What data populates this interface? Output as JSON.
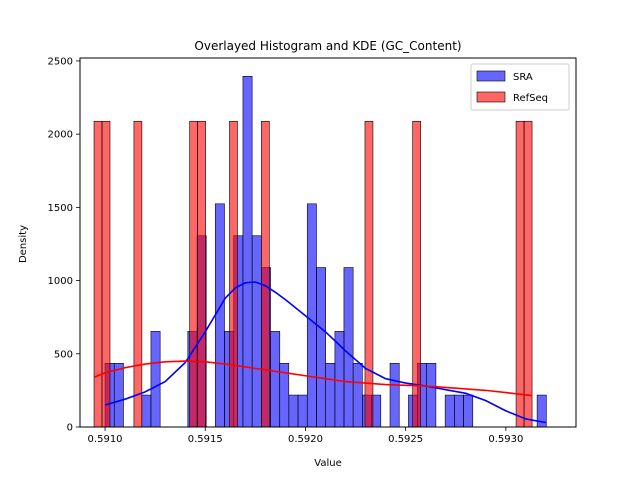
{
  "chart_data": {
    "type": "bar",
    "title": "Overlayed Histogram and KDE (GC_Content)",
    "xlabel": "Value",
    "ylabel": "Density",
    "xlim": [
      0.590875,
      0.59335
    ],
    "ylim": [
      0,
      2520
    ],
    "xticks": [
      0.591,
      0.5915,
      0.592,
      0.5925,
      0.593
    ],
    "xtick_labels": [
      "0.5910",
      "0.5915",
      "0.5920",
      "0.5925",
      "0.5930"
    ],
    "yticks": [
      0,
      500,
      1000,
      1500,
      2000,
      2500
    ],
    "ytick_labels": [
      "0",
      "500",
      "1000",
      "1500",
      "2000",
      "2500"
    ],
    "grid": false,
    "legend_position": "top-right",
    "series": [
      {
        "name": "SRA",
        "kind": "histogram",
        "color": "#0000ff",
        "bin_width": 4.59e-05,
        "bins": [
          [
            0.591,
            435
          ],
          [
            0.591046,
            435
          ],
          [
            0.591092,
            0
          ],
          [
            0.591138,
            0
          ],
          [
            0.591183,
            218
          ],
          [
            0.591229,
            653
          ],
          [
            0.591275,
            0
          ],
          [
            0.591321,
            0
          ],
          [
            0.591367,
            0
          ],
          [
            0.591413,
            653
          ],
          [
            0.591459,
            1306
          ],
          [
            0.591504,
            0
          ],
          [
            0.59155,
            1524
          ],
          [
            0.591596,
            653
          ],
          [
            0.591642,
            1306
          ],
          [
            0.591688,
            2395
          ],
          [
            0.591734,
            1306
          ],
          [
            0.59178,
            1089
          ],
          [
            0.591826,
            653
          ],
          [
            0.591871,
            435
          ],
          [
            0.591917,
            218
          ],
          [
            0.591963,
            218
          ],
          [
            0.592009,
            1524
          ],
          [
            0.592055,
            1089
          ],
          [
            0.592101,
            435
          ],
          [
            0.592147,
            653
          ],
          [
            0.592192,
            1089
          ],
          [
            0.592238,
            435
          ],
          [
            0.592284,
            218
          ],
          [
            0.59233,
            218
          ],
          [
            0.592376,
            0
          ],
          [
            0.592422,
            435
          ],
          [
            0.592468,
            0
          ],
          [
            0.592514,
            218
          ],
          [
            0.592559,
            435
          ],
          [
            0.592605,
            435
          ],
          [
            0.592651,
            0
          ],
          [
            0.592697,
            218
          ],
          [
            0.592743,
            218
          ],
          [
            0.592789,
            218
          ],
          [
            0.592835,
            0
          ],
          [
            0.59288,
            0
          ],
          [
            0.592926,
            0
          ],
          [
            0.592972,
            0
          ],
          [
            0.593018,
            0
          ],
          [
            0.593064,
            0
          ],
          [
            0.59311,
            0
          ],
          [
            0.593156,
            218
          ]
        ]
      },
      {
        "name": "RefSeq",
        "kind": "histogram",
        "color": "#ff0000",
        "bin_width": 3.97e-05,
        "bins": [
          [
            0.590945,
            2088
          ],
          [
            0.590985,
            2088
          ],
          [
            0.591144,
            2088
          ],
          [
            0.591422,
            2088
          ],
          [
            0.591462,
            2088
          ],
          [
            0.591621,
            2088
          ],
          [
            0.59178,
            2088
          ],
          [
            0.592297,
            2088
          ],
          [
            0.592535,
            2088
          ],
          [
            0.593051,
            2088
          ],
          [
            0.593091,
            2088
          ]
        ]
      },
      {
        "name": "SRA KDE",
        "kind": "kde",
        "color": "#0000ff",
        "x": [
          0.591,
          0.5911,
          0.5912,
          0.5913,
          0.5914,
          0.5915,
          0.5916,
          0.59165,
          0.5917,
          0.59175,
          0.5918,
          0.59185,
          0.5919,
          0.592,
          0.5921,
          0.5922,
          0.5923,
          0.5924,
          0.5925,
          0.5926,
          0.5927,
          0.5928,
          0.5929,
          0.593,
          0.5931,
          0.5932
        ],
        "y": [
          150,
          190,
          240,
          310,
          440,
          650,
          880,
          950,
          985,
          990,
          965,
          920,
          870,
          760,
          650,
          520,
          400,
          330,
          300,
          280,
          255,
          230,
          180,
          110,
          55,
          30
        ]
      },
      {
        "name": "RefSeq KDE",
        "kind": "kde",
        "color": "#ff0000",
        "x": [
          0.590945,
          0.591,
          0.5911,
          0.5912,
          0.5913,
          0.5914,
          0.5915,
          0.5916,
          0.5917,
          0.5918,
          0.5919,
          0.592,
          0.5921,
          0.5922,
          0.5923,
          0.5924,
          0.5925,
          0.5926,
          0.5927,
          0.5928,
          0.5929,
          0.593,
          0.59313
        ],
        "y": [
          340,
          370,
          405,
          430,
          445,
          450,
          445,
          430,
          410,
          390,
          370,
          350,
          330,
          310,
          300,
          290,
          285,
          280,
          270,
          260,
          250,
          235,
          215
        ]
      }
    ]
  }
}
